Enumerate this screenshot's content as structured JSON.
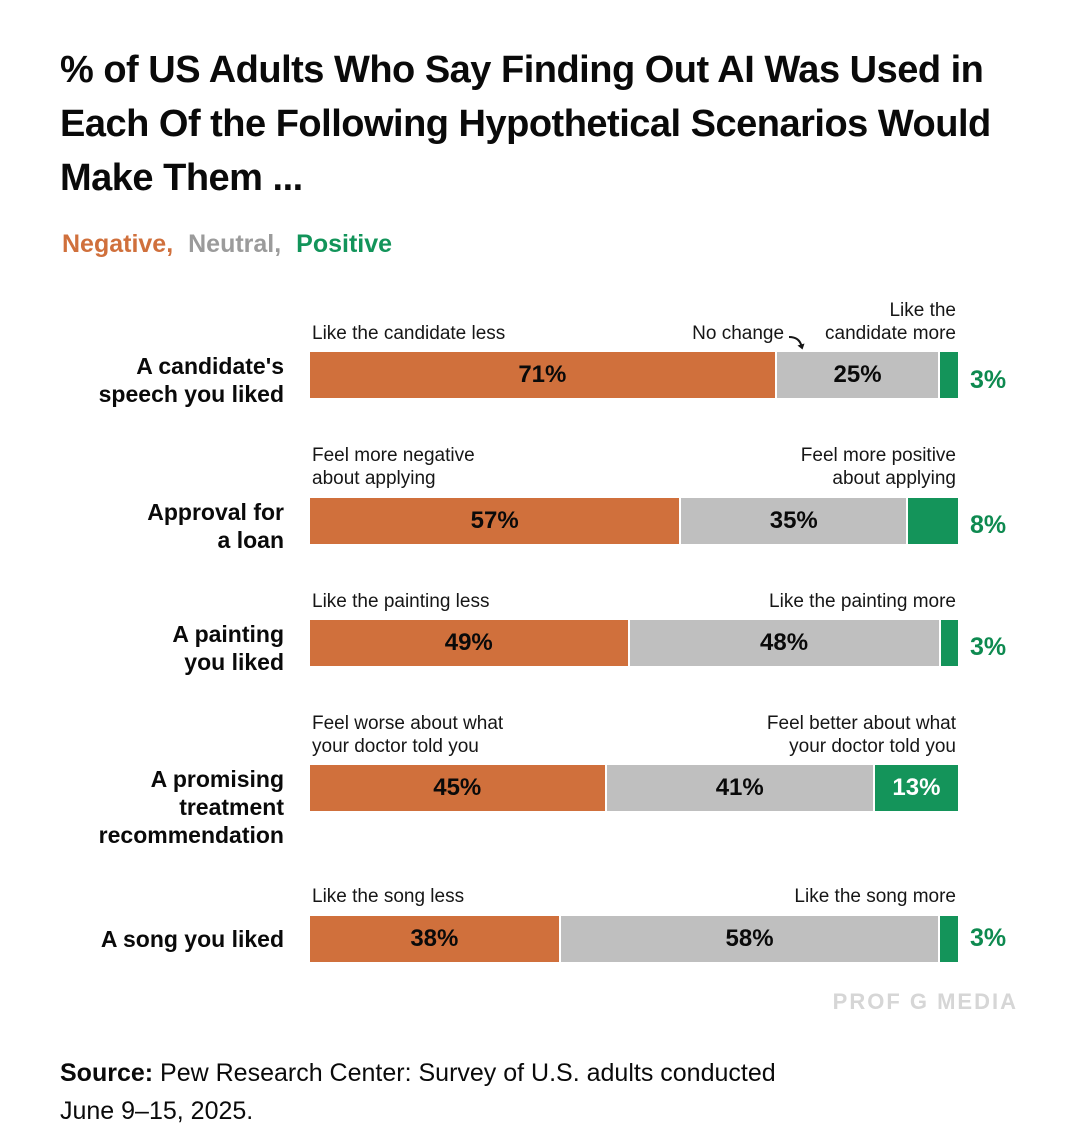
{
  "title": "% of US Adults Who Say Finding Out AI Was Used in Each Of the Following Hypothetical Scenarios Would Make Them ...",
  "legend": {
    "items": [
      {
        "label": "Negative,",
        "color": "#d0703c"
      },
      {
        "label": "Neutral,",
        "color": "#9b9b9b"
      },
      {
        "label": "Positive",
        "color": "#12945a"
      }
    ]
  },
  "colors": {
    "negative": "#d0703c",
    "neutral": "#bfbfbf",
    "positive": "#14945a",
    "positive_text": "#0e8a50",
    "annotation_text": "#161616",
    "watermark": "#d6d6d6"
  },
  "chart_data": {
    "type": "bar",
    "orientation": "horizontal",
    "stacked": true,
    "series_names": [
      "Negative",
      "Neutral",
      "Positive"
    ],
    "rows": [
      {
        "category": "A candidate's\nspeech you liked",
        "values": [
          71,
          25,
          3
        ],
        "value_labels": [
          "71%",
          "25%",
          "3%"
        ],
        "left_annotation": "Like the candidate less",
        "mid_annotation": "No change",
        "right_annotation": "Like the\ncandidate more",
        "positive_label_position": "outside"
      },
      {
        "category": "Approval for\na loan",
        "values": [
          57,
          35,
          8
        ],
        "value_labels": [
          "57%",
          "35%",
          "8%"
        ],
        "left_annotation": "Feel more negative\nabout applying",
        "mid_annotation": "",
        "right_annotation": "Feel more positive\nabout applying",
        "positive_label_position": "outside"
      },
      {
        "category": "A painting\nyou liked",
        "values": [
          49,
          48,
          3
        ],
        "value_labels": [
          "49%",
          "48%",
          "3%"
        ],
        "left_annotation": "Like the painting less",
        "mid_annotation": "",
        "right_annotation": "Like the painting more",
        "positive_label_position": "outside"
      },
      {
        "category": "A promising\ntreatment\nrecommendation",
        "values": [
          45,
          41,
          13
        ],
        "value_labels": [
          "45%",
          "41%",
          "13%"
        ],
        "left_annotation": "Feel worse about what\nyour doctor told you",
        "mid_annotation": "",
        "right_annotation": "Feel better about what\nyour doctor told you",
        "positive_label_position": "inside"
      },
      {
        "category": "A song you liked",
        "values": [
          38,
          58,
          3
        ],
        "value_labels": [
          "38%",
          "58%",
          "3%"
        ],
        "left_annotation": "Like the song less",
        "mid_annotation": "",
        "right_annotation": "Like the song more",
        "positive_label_position": "outside"
      }
    ]
  },
  "source": {
    "prefix": "Source:",
    "text": " Pew Research Center: Survey of U.S. adults conducted\nJune 9–15, 2025."
  },
  "watermark": "PROF G MEDIA"
}
